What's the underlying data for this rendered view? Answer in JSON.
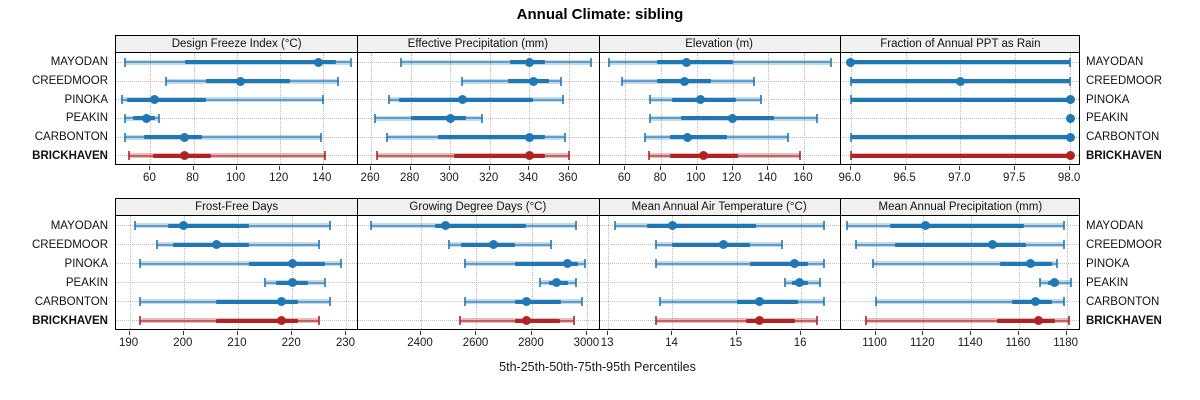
{
  "title": "Annual Climate: sibling",
  "footer": "5th-25th-50th-75th-95th Percentiles",
  "colors": {
    "series_blue": "#1f77b4",
    "series_blue_band": "rgba(31,119,180,0.28)",
    "highlight_red": "#b22222",
    "highlight_red_band": "rgba(178,34,34,0.30)",
    "strip_bg": "#f0f0f0",
    "grid": "#bdbdbd",
    "border": "#000000"
  },
  "stations": [
    "MAYODAN",
    "CREEDMOOR",
    "PINOKA",
    "PEAKIN",
    "CARBONTON",
    "BRICKHAVEN"
  ],
  "highlight_station": "BRICKHAVEN",
  "chart_data": {
    "type": "percentile-interval-trellis",
    "layout": "2 rows x 4 cols",
    "percentiles": [
      5,
      25,
      50,
      75,
      95
    ],
    "rows_order": [
      "MAYODAN",
      "CREEDMOOR",
      "PINOKA",
      "PEAKIN",
      "CARBONTON",
      "BRICKHAVEN"
    ],
    "panels": [
      {
        "title": "Design Freeze Index (°C)",
        "xlim": [
          44,
          156
        ],
        "ticks": [
          60,
          80,
          100,
          120,
          140
        ],
        "tick_labels": [
          "60",
          "80",
          "100",
          "120",
          "140"
        ],
        "values": [
          [
            48,
            76,
            138,
            146,
            153
          ],
          [
            67,
            86,
            102,
            125,
            147
          ],
          [
            47,
            49,
            62,
            86,
            140
          ],
          [
            48,
            52,
            58,
            62,
            64
          ],
          [
            48,
            57,
            76,
            84,
            139
          ],
          [
            50,
            61,
            76,
            88,
            141
          ]
        ]
      },
      {
        "title": "Effective Precipitation (mm)",
        "xlim": [
          253,
          375
        ],
        "ticks": [
          260,
          280,
          300,
          320,
          340,
          360
        ],
        "tick_labels": [
          "260",
          "280",
          "300",
          "320",
          "340",
          "360"
        ],
        "values": [
          [
            275,
            330,
            340,
            348,
            371
          ],
          [
            306,
            329,
            342,
            350,
            356
          ],
          [
            269,
            274,
            306,
            342,
            357
          ],
          [
            262,
            280,
            300,
            308,
            316
          ],
          [
            268,
            294,
            340,
            348,
            358
          ],
          [
            263,
            302,
            340,
            348,
            360
          ]
        ]
      },
      {
        "title": "Elevation (m)",
        "xlim": [
          45,
          180
        ],
        "ticks": [
          60,
          80,
          100,
          120,
          140,
          160
        ],
        "tick_labels": [
          "60",
          "80",
          "100",
          "120",
          "140",
          "160"
        ],
        "values": [
          [
            51,
            78,
            94,
            120,
            175
          ],
          [
            58,
            78,
            93,
            108,
            132
          ],
          [
            74,
            86,
            102,
            122,
            136
          ],
          [
            74,
            91,
            120,
            143,
            167
          ],
          [
            71,
            85,
            95,
            117,
            151
          ],
          [
            73,
            85,
            104,
            123,
            158
          ]
        ]
      },
      {
        "title": "Fraction of Annual PPT as Rain",
        "xlim": [
          95.9,
          98.1
        ],
        "ticks": [
          96,
          96.5,
          97,
          97.5,
          98
        ],
        "tick_labels": [
          "96.0",
          "96.5",
          "97.0",
          "97.5",
          "98.0"
        ],
        "values": [
          [
            96,
            96,
            96,
            98,
            98
          ],
          [
            96,
            96,
            97,
            98,
            98
          ],
          [
            96,
            96,
            98,
            98,
            98
          ],
          [
            98,
            98,
            98,
            98,
            98
          ],
          [
            96,
            96,
            98,
            98,
            98
          ],
          [
            96,
            96,
            98,
            98,
            98
          ]
        ]
      },
      {
        "title": "Frost-Free Days",
        "xlim": [
          187.5,
          232
        ],
        "ticks": [
          190,
          200,
          210,
          220,
          230
        ],
        "tick_labels": [
          "190",
          "200",
          "210",
          "220",
          "230"
        ],
        "values": [
          [
            191,
            197,
            200,
            212,
            227
          ],
          [
            195,
            198,
            206,
            212,
            225
          ],
          [
            192,
            212,
            220,
            226,
            229
          ],
          [
            215,
            217,
            220,
            223,
            226
          ],
          [
            192,
            206,
            218,
            221,
            227
          ],
          [
            192,
            206,
            218,
            221,
            225
          ]
        ]
      },
      {
        "title": "Growing Degree Days (°C)",
        "xlim": [
          2170,
          3040
        ],
        "ticks": [
          2400,
          2600,
          2800,
          3000
        ],
        "tick_labels": [
          "2400",
          "2600",
          "2800",
          "3000"
        ],
        "values": [
          [
            2220,
            2450,
            2490,
            2780,
            2960
          ],
          [
            2500,
            2545,
            2660,
            2740,
            2870
          ],
          [
            2560,
            2740,
            2930,
            2965,
            2990
          ],
          [
            2830,
            2860,
            2890,
            2930,
            2960
          ],
          [
            2560,
            2740,
            2780,
            2905,
            2980
          ],
          [
            2540,
            2740,
            2780,
            2900,
            2950
          ]
        ]
      },
      {
        "title": "Mean Annual Air Temperature (°C)",
        "xlim": [
          12.85,
          16.6
        ],
        "ticks": [
          13,
          14,
          15,
          16
        ],
        "tick_labels": [
          "13",
          "14",
          "15",
          "16"
        ],
        "values": [
          [
            13.1,
            13.6,
            14.0,
            15.3,
            16.35
          ],
          [
            13.75,
            14.0,
            14.8,
            15.2,
            15.7
          ],
          [
            13.75,
            15.2,
            15.9,
            16.1,
            16.35
          ],
          [
            15.75,
            15.85,
            15.97,
            16.1,
            16.3
          ],
          [
            13.8,
            15.0,
            15.35,
            15.95,
            16.35
          ],
          [
            13.75,
            15.15,
            15.35,
            15.9,
            16.25
          ]
        ]
      },
      {
        "title": "Mean Annual Precipitation (mm)",
        "xlim": [
          1085,
          1186
        ],
        "ticks": [
          1100,
          1120,
          1140,
          1160,
          1180
        ],
        "tick_labels": [
          "1100",
          "1120",
          "1140",
          "1160",
          "1180"
        ],
        "values": [
          [
            1088,
            1106,
            1121,
            1162,
            1179
          ],
          [
            1092,
            1108,
            1149,
            1163,
            1179
          ],
          [
            1099,
            1152,
            1165,
            1174,
            1176
          ],
          [
            1169,
            1172,
            1175,
            1177,
            1182
          ],
          [
            1100,
            1157,
            1167,
            1174,
            1179
          ],
          [
            1096,
            1151,
            1168,
            1175,
            1181
          ]
        ]
      }
    ]
  }
}
